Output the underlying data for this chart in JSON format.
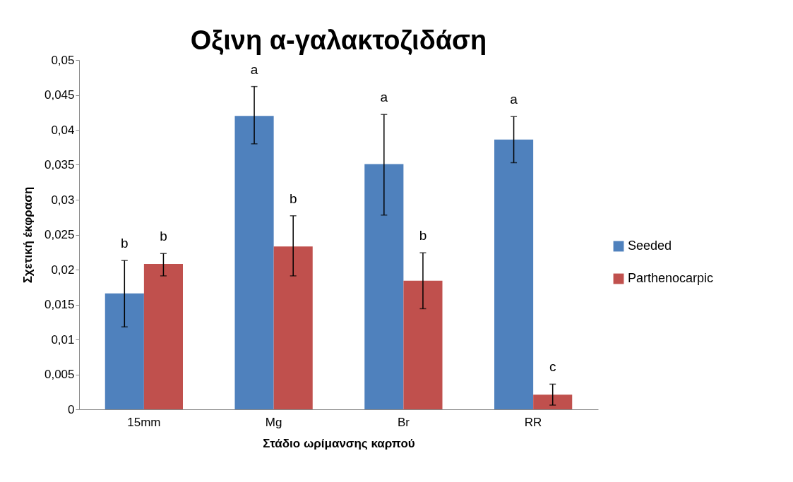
{
  "chart_data": {
    "type": "bar",
    "title": "Οξινη α-γαλακτοζιδάση",
    "xlabel": "Στάδιο ωρίμανσης καρπού",
    "ylabel": "Σχετική έκφραση",
    "categories": [
      "15mm",
      "Mg",
      "Br",
      "RR"
    ],
    "series": [
      {
        "name": "Seeded",
        "color": "#4f81bd",
        "values": [
          0.0166,
          0.042,
          0.0351,
          0.0386
        ],
        "errors": [
          [
            0.0118,
            0.0213
          ],
          [
            0.038,
            0.0462
          ],
          [
            0.0278,
            0.0422
          ],
          [
            0.0353,
            0.0419
          ]
        ]
      },
      {
        "name": "Parthenocarpic",
        "color": "#c0504d",
        "values": [
          0.0208,
          0.0233,
          0.0184,
          0.0021
        ],
        "errors": [
          [
            0.0191,
            0.0223
          ],
          [
            0.0191,
            0.0277
          ],
          [
            0.0144,
            0.0224
          ],
          [
            0.0006,
            0.0036
          ]
        ]
      }
    ],
    "ylim": [
      0,
      0.05
    ],
    "yticks": [
      0,
      {
        "value": 0.005,
        "label": "0,005"
      },
      {
        "value": 0.01,
        "label": "0,01"
      },
      {
        "value": 0.015,
        "label": "0,015"
      },
      {
        "value": 0.02,
        "label": "0,02"
      },
      {
        "value": 0.025,
        "label": "0,025"
      },
      {
        "value": 0.03,
        "label": "0,03"
      },
      {
        "value": 0.035,
        "label": "0,035"
      },
      {
        "value": 0.04,
        "label": "0,04"
      },
      {
        "value": 0.045,
        "label": "0,045"
      },
      {
        "value": 0.05,
        "label": "0,05"
      }
    ],
    "annotations": [
      "b",
      "b",
      "a",
      "b",
      "a",
      "b",
      "a",
      "c"
    ],
    "grid": false,
    "legend": "right"
  }
}
